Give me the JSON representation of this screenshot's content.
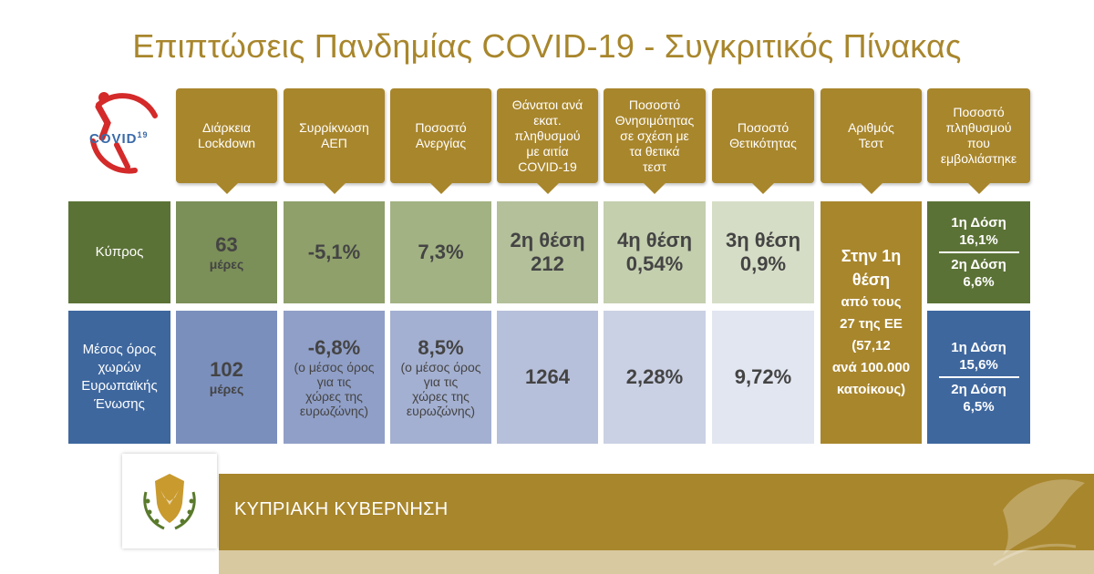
{
  "title": "Επιπτώσεις Πανδημίας COVID-19 - Συγκριτικός Πίνακας",
  "logo_text": "COVID",
  "logo_sup": "19",
  "headers": [
    "Διάρκεια\nLockdown",
    "Συρρίκνωση\nΑΕΠ",
    "Ποσοστό\nΑνεργίας",
    "Θάνατοι ανά\nεκατ.\nπληθυσμού\nμε αιτία\nCOVID-19",
    "Ποσοστό\nΘνησιμότητας\nσε σχέση με\nτα θετικά\nτεστ",
    "Ποσοστό\nΘετικότητας",
    "Αριθμός\nΤεστ",
    "Ποσοστό\nπληθυσμού\nπου\nεμβολιάστηκε"
  ],
  "rows": {
    "cyprus": {
      "label": "Κύπρος",
      "lockdown_value": "63",
      "lockdown_unit": "μέρες",
      "gdp": "-5,1%",
      "unemployment": "7,3%",
      "deaths_rank": "2η θέση",
      "deaths_value": "212",
      "mortality_rank": "4η θέση",
      "mortality_value": "0,54%",
      "positivity_rank": "3η θέση",
      "positivity_value": "0,9%",
      "vax_dose1": "1η Δόση\n16,1%",
      "vax_dose2": "2η Δόση\n6,6%"
    },
    "eu": {
      "label": "Μέσος όρος\nχωρών\nΕυρωπαϊκής\nΈνωσης",
      "lockdown_value": "102",
      "lockdown_unit": "μέρες",
      "gdp": "-6,8%",
      "gdp_note": "(ο μέσος όρος\nγια τις\nχώρες της\nευρωζώνης)",
      "unemployment": "8,5%",
      "unemployment_note": "(ο μέσος όρος\nγια τις\nχώρες της\nευρωζώνης)",
      "deaths_value": "1264",
      "mortality_value": "2,28%",
      "positivity_value": "9,72%",
      "vax_dose1": "1η Δόση\n15,6%",
      "vax_dose2": "2η Δόση\n6,5%"
    }
  },
  "tests": {
    "rank": "Στην 1η\nθέση",
    "detail": "από τους\n27 της ΕΕ\n(57,12\nανά 100.000\nκατοίκους)"
  },
  "footer": "ΚΥΠΡΙΑΚΗ ΚΥΒΕΡΝΗΣΗ",
  "colors": {
    "gold": "#a8862c",
    "cyprus_green_dark": "#5b7236",
    "cyprus_green": "#7b8f58",
    "eu_blue_dark": "#3e679e",
    "eu_blue": "#7b8fbd"
  }
}
